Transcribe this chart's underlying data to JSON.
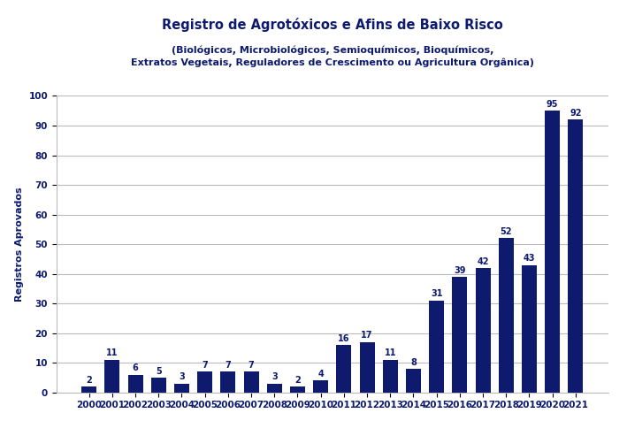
{
  "title": "Registro de Agrotóxicos e Afins de Baixo Risco",
  "subtitle": "(Biológicos, Microbiológicos, Semioquímicos, Bioquímicos,\nExtratos Vegetais, Reguladores de Crescimento ou Agricultura Orgânica)",
  "ylabel": "Registros Aprovados",
  "years": [
    2000,
    2001,
    2002,
    2003,
    2004,
    2005,
    2006,
    2007,
    2008,
    2009,
    2010,
    2011,
    2012,
    2013,
    2014,
    2015,
    2016,
    2017,
    2018,
    2019,
    2020,
    2021
  ],
  "values": [
    2,
    11,
    6,
    5,
    3,
    7,
    7,
    7,
    3,
    2,
    4,
    16,
    17,
    11,
    8,
    31,
    39,
    42,
    52,
    43,
    95,
    92
  ],
  "bar_color": "#0d1a6e",
  "label_color": "#0d1a6e",
  "background_color": "#ffffff",
  "grid_color": "#bbbbbb",
  "title_color": "#0d1a6e",
  "ylim": [
    0,
    100
  ],
  "yticks": [
    0,
    10,
    20,
    30,
    40,
    50,
    60,
    70,
    80,
    90,
    100
  ],
  "title_fontsize": 10.5,
  "subtitle_fontsize": 8,
  "ylabel_fontsize": 8,
  "tick_fontsize": 7.5,
  "label_fontsize": 7
}
